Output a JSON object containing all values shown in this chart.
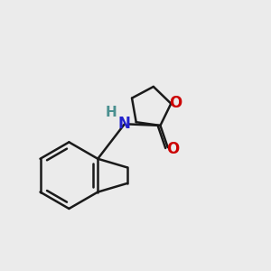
{
  "background_color": "#ebebeb",
  "bond_color": "#1a1a1a",
  "N_color": "#2222cc",
  "O_color": "#cc0000",
  "H_color": "#4a9090",
  "line_width": 1.8,
  "figsize": [
    3.0,
    3.0
  ],
  "dpi": 100,
  "xlim": [
    0,
    10
  ],
  "ylim": [
    0,
    10
  ]
}
